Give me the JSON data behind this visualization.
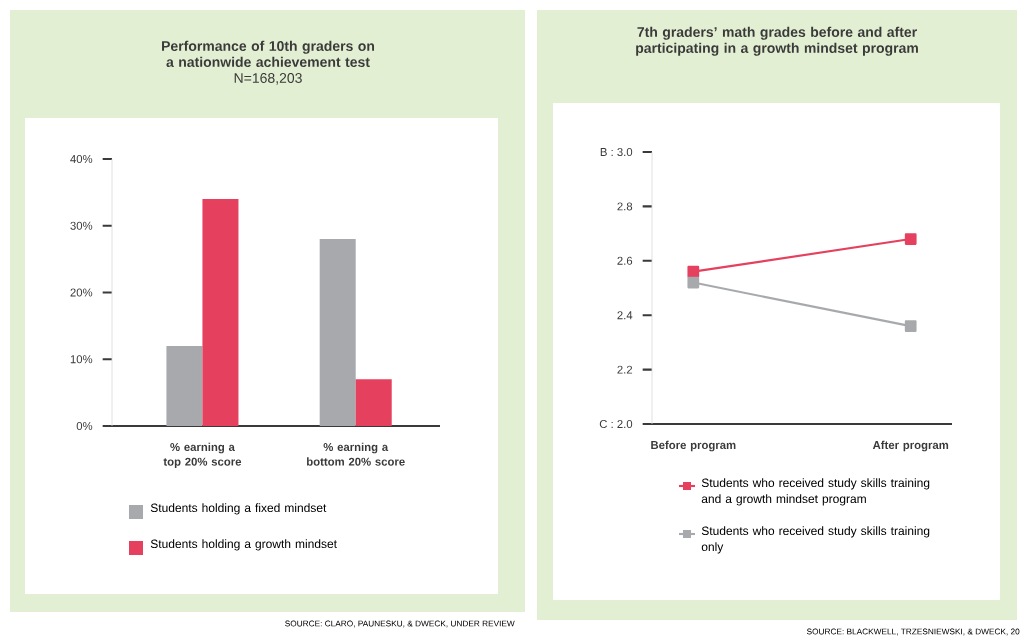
{
  "chart_data": [
    {
      "type": "bar",
      "title": "Performance of 10th graders on a nationwide achievement test",
      "subtitle": "N=168,203",
      "categories": [
        "% earning a top 20% score",
        "% earning a bottom 20% score"
      ],
      "series": [
        {
          "name": "Students holding a fixed mindset",
          "color": "#a7a9ac",
          "values": [
            12,
            28
          ]
        },
        {
          "name": "Students holding a growth mindset",
          "color": "#e5405e",
          "values": [
            34,
            7
          ]
        }
      ],
      "ylim": [
        0,
        40
      ],
      "yticks": [
        {
          "value": 0,
          "label": "0%"
        },
        {
          "value": 10,
          "label": "10%"
        },
        {
          "value": 20,
          "label": "20%"
        },
        {
          "value": 30,
          "label": "30%"
        },
        {
          "value": 40,
          "label": "40%"
        }
      ],
      "legend": "bottom",
      "annotations": [
        "SOURCE: CLARO, PAUNESKU, & DWECK, UNDER REVIEW"
      ]
    },
    {
      "type": "line",
      "title": "7th graders’ math grades before and after participating in a growth mindset program",
      "categories": [
        "Before program",
        "After program"
      ],
      "series": [
        {
          "name": "Students who received study skills training and a growth mindset program",
          "color": "#e5405e",
          "values": [
            2.56,
            2.68
          ]
        },
        {
          "name": "Students who received study skills training only",
          "color": "#a7a9ac",
          "values": [
            2.52,
            2.36
          ]
        }
      ],
      "ylim": [
        2.0,
        3.0
      ],
      "yticks": [
        {
          "value": 2.0,
          "label": "C : 2.0"
        },
        2.2,
        2.4,
        2.6,
        2.8,
        {
          "value": 3.0,
          "label": "B : 3.0"
        }
      ],
      "marker": "square",
      "legend": "bottom",
      "annotations": [
        "SOURCE: BLACKWELL, TRZESNIEWSKI, & DWECK, 20"
      ]
    }
  ]
}
